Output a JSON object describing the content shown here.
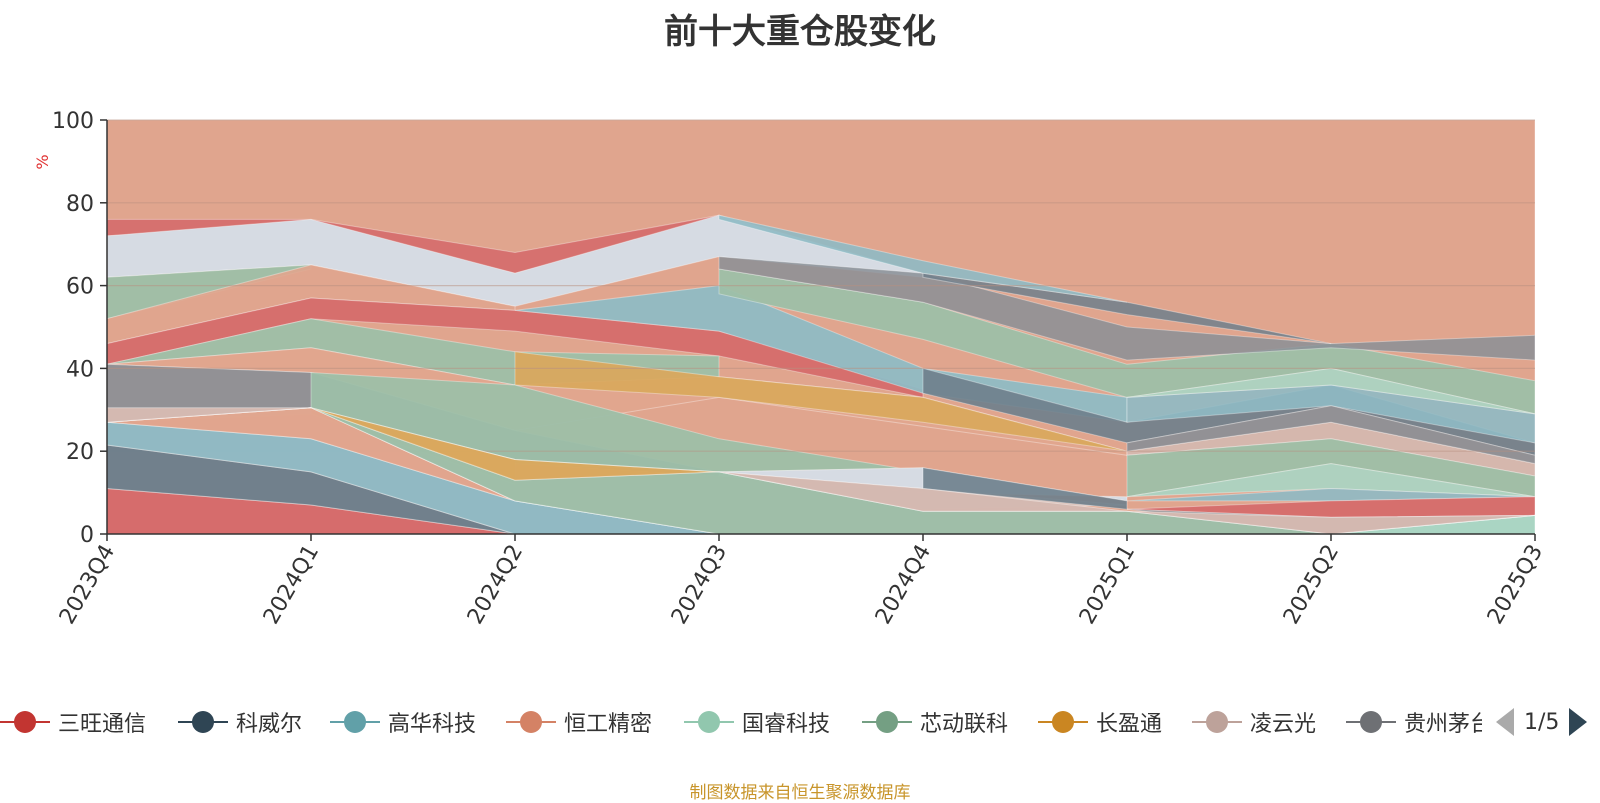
{
  "chart_data": {
    "type": "area",
    "title": "前十大重仓股变化",
    "ylabel": "%",
    "ylim": [
      0,
      100
    ],
    "yticks": [
      0,
      20,
      40,
      60,
      80,
      100
    ],
    "categories": [
      "2023Q4",
      "2024Q1",
      "2024Q2",
      "2024Q3",
      "2024Q4",
      "2025Q1",
      "2025Q2",
      "2025Q3"
    ],
    "grid": true,
    "stacked": true,
    "series": [
      {
        "name": "三旺通信",
        "color": "#d56b6b",
        "values": [
          11,
          7,
          0,
          0,
          0,
          0,
          0,
          0
        ]
      },
      {
        "name": "科威尔",
        "color": "#6e7f8c",
        "values": [
          10.5,
          8,
          0,
          0,
          0,
          0,
          0,
          0
        ]
      },
      {
        "name": "高华科技",
        "color": "#8fbac4",
        "values": [
          5.5,
          8,
          8,
          0,
          0,
          0,
          0,
          0
        ]
      },
      {
        "name": "恒工精密",
        "color": "#e0a58e",
        "values": [
          0,
          7.5,
          0,
          0,
          0,
          0,
          0,
          0
        ]
      },
      {
        "name": "国睿科技",
        "color": "#a8d6c4",
        "values": [
          0,
          0,
          0,
          0,
          0,
          0,
          0,
          4.5
        ]
      },
      {
        "name": "芯动联科",
        "color": "#9dbfa8",
        "values": [
          0,
          0,
          5,
          15,
          5.5,
          5.5,
          0,
          0
        ]
      },
      {
        "name": "长盈通",
        "color": "#d9a85e",
        "values": [
          0,
          0,
          5,
          0,
          0,
          0,
          0,
          0
        ]
      },
      {
        "name": "凌云光",
        "color": "#d4b9b0",
        "values": [
          3.5,
          0,
          0,
          0,
          5.5,
          0,
          4,
          0
        ]
      }
    ]
  },
  "legend": {
    "items": [
      {
        "label": "三旺通信",
        "color": "#c23531"
      },
      {
        "label": "科威尔",
        "color": "#2f4554"
      },
      {
        "label": "高华科技",
        "color": "#61a0a8"
      },
      {
        "label": "恒工精密",
        "color": "#d48265"
      },
      {
        "label": "国睿科技",
        "color": "#91c7ae"
      },
      {
        "label": "芯动联科",
        "color": "#749f83"
      },
      {
        "label": "长盈通",
        "color": "#ca8622"
      },
      {
        "label": "凌云光",
        "color": "#bda29a"
      },
      {
        "label": "贵州茅台",
        "color": "#6e7074"
      }
    ],
    "page_text": "1/5"
  },
  "source_note": "制图数据来自恒生聚源数据库"
}
